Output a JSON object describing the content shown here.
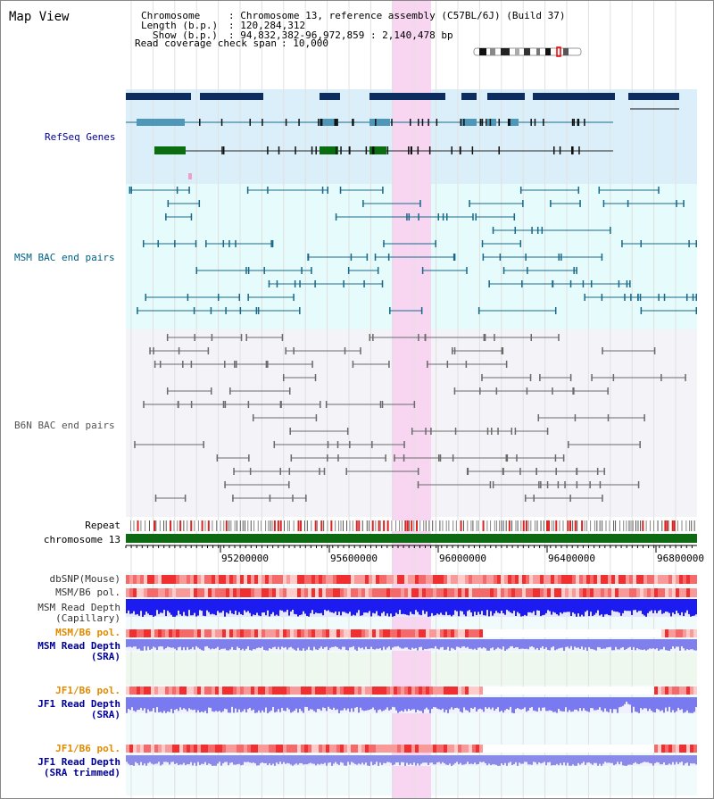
{
  "title": "Map View",
  "info": {
    "chromosome_key": "Chromosome",
    "chromosome_val": ": Chromosome 13, reference assembly (C57BL/6J) (Build 37)",
    "length_key": "Length (b.p.)",
    "length_val": ": 120,284,312",
    "show_key": "Show (b.p.)",
    "show_val": ": 94,832,382-96,972,859 : 2,140,478 bp",
    "coverage_key": "Read coverage check span",
    "coverage_val": ": 10,000"
  },
  "tracks": {
    "refseq": "RefSeq Genes",
    "msm_bac": "MSM BAC end pairs",
    "b6n_bac": "B6N BAC end pairs",
    "repeat": "Repeat",
    "chromosome": "chromosome 13",
    "dbsnp": "dbSNP(Mouse)",
    "msm_b6_pol": "MSM/B6 pol.",
    "msm_depth_cap_1": "MSM Read Depth",
    "msm_depth_cap_2": "(Capillary)",
    "msm_b6_pol_sra": "MSM/B6 pol.",
    "msm_depth_sra_1": "MSM Read Depth",
    "msm_depth_sra_2": "(SRA)",
    "jf1_pol": "JF1/B6 pol.",
    "jf1_depth_sra_1": "JF1 Read Depth",
    "jf1_depth_sra_2": "(SRA)",
    "jf1_pol_trim": "JF1/B6 pol.",
    "jf1_depth_trim_1": "JF1 Read Depth",
    "jf1_depth_trim_2": "(SRA trimmed)"
  },
  "axis_ticks": [
    "95200000",
    "95600000",
    "96000000",
    "96400000",
    "96800000"
  ],
  "colors": {
    "refseq_bg": "#dbeffa",
    "msm_bac_bg": "#e6fbfb",
    "b6n_bg": "#f4f4f8",
    "highlight": "#f8d6f2",
    "gene_dark": "#0d2d5e",
    "gene_mid": "#4f97b8",
    "gene_green": "#0a6e10",
    "msm_line": "#19688a",
    "b6n_line": "#6a6a6a",
    "chrom_green": "#0d6a12",
    "label_blue": "#000099",
    "label_teal": "#006080",
    "label_orange": "#e08a00"
  }
}
